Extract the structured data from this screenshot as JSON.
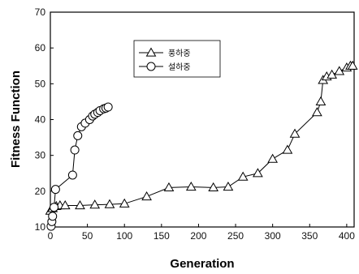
{
  "chart_data": {
    "type": "line",
    "title": "",
    "xlabel": "Generation",
    "ylabel": "Fitness Function",
    "xlim": [
      0,
      410
    ],
    "ylim": [
      10,
      70
    ],
    "xticks": [
      0,
      50,
      100,
      150,
      200,
      250,
      300,
      350,
      400
    ],
    "yticks": [
      10,
      20,
      30,
      40,
      50,
      60,
      70
    ],
    "grid": false,
    "legend": {
      "position": "top-center",
      "frame": true
    },
    "series": [
      {
        "name": "풍하중",
        "marker": "triangle",
        "color": "#000000",
        "x": [
          0,
          3,
          8,
          13,
          20,
          40,
          60,
          80,
          100,
          130,
          160,
          190,
          220,
          240,
          260,
          280,
          300,
          320,
          330,
          360,
          365,
          368,
          373,
          380,
          390,
          400,
          405,
          408
        ],
        "y": [
          14.5,
          15.2,
          15.8,
          16.0,
          16.0,
          16.0,
          16.2,
          16.3,
          16.5,
          18.5,
          21.0,
          21.2,
          21.0,
          21.2,
          24.0,
          25.0,
          29.0,
          31.5,
          36.0,
          42.0,
          45.0,
          51.0,
          52.0,
          52.5,
          53.5,
          54.5,
          55.0,
          55.0
        ]
      },
      {
        "name": "설하중",
        "marker": "circle",
        "color": "#000000",
        "x": [
          1,
          2,
          3,
          5,
          7,
          30,
          33,
          37,
          42,
          47,
          53,
          57,
          60,
          64,
          67,
          72,
          75,
          78
        ],
        "y": [
          10.2,
          11.5,
          13.0,
          15.5,
          20.5,
          24.5,
          31.5,
          35.5,
          38.0,
          39.0,
          40.0,
          41.0,
          41.5,
          42.0,
          42.5,
          43.0,
          43.2,
          43.5
        ]
      }
    ]
  }
}
